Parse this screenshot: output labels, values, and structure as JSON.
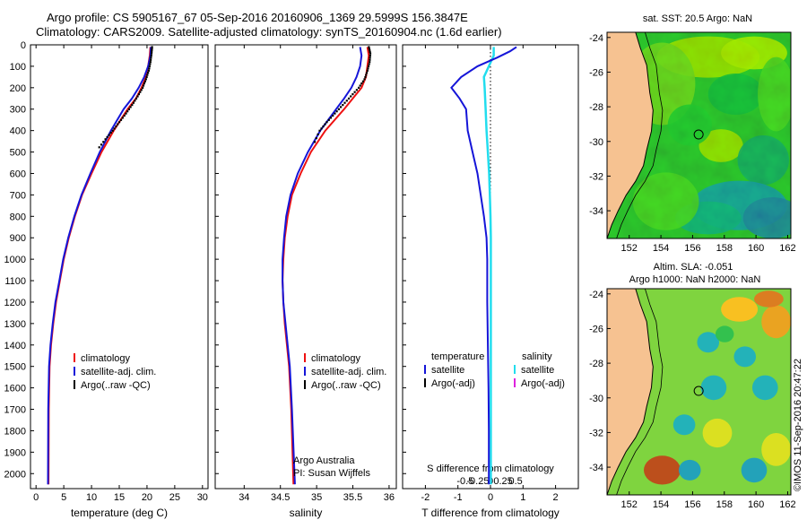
{
  "title_line1": "Argo profile: CS 5905167_67 05-Sep-2016 20160906_1369 29.5999S 156.3847E",
  "title_line2": "Climatology: CARS2009. Satellite-adjusted climatology: synTS_20160904.nc (1.6d earlier)",
  "colors": {
    "climatology": "#ee1111",
    "satellite": "#1515d8",
    "argo": "#000000",
    "sat_salinity": "#22ddee",
    "argo_salinity_adj": "#dd22dd",
    "land": "#f6c291",
    "sea_base": "#3aba3a"
  },
  "chart_data": [
    {
      "type": "line",
      "name": "temperature",
      "xlabel": "temperature (deg C)",
      "ylabel": "",
      "xlim": [
        -1,
        31
      ],
      "ylim": [
        2070,
        0
      ],
      "xticks": [
        0,
        5,
        10,
        15,
        20,
        25,
        30
      ],
      "yticks": [
        0,
        100,
        200,
        300,
        400,
        500,
        600,
        700,
        800,
        900,
        1000,
        1100,
        1200,
        1300,
        1400,
        1500,
        1600,
        1700,
        1800,
        1900,
        2000
      ],
      "legend": [
        "climatology",
        "satellite-adj. clim.",
        "Argo(..raw -QC)"
      ],
      "series": [
        {
          "name": "climatology",
          "x": [
            20.6,
            20.5,
            20.2,
            19.8,
            19.0,
            18.0,
            16.5,
            14.0,
            11.8,
            10.0,
            8.3,
            7.0,
            5.9,
            5.0,
            4.3,
            3.6,
            3.1,
            2.7,
            2.45,
            2.3,
            2.25
          ],
          "y": [
            10,
            50,
            100,
            150,
            200,
            250,
            300,
            400,
            500,
            600,
            700,
            800,
            900,
            1000,
            1100,
            1200,
            1300,
            1400,
            1500,
            1700,
            2050
          ]
        },
        {
          "name": "satellite-adj. clim.",
          "x": [
            20.7,
            20.6,
            20.2,
            19.5,
            18.5,
            17.3,
            15.8,
            13.5,
            11.5,
            9.8,
            8.2,
            6.9,
            5.8,
            4.9,
            4.2,
            3.5,
            3.0,
            2.6,
            2.35,
            2.2,
            2.15
          ],
          "y": [
            10,
            50,
            100,
            150,
            200,
            250,
            300,
            400,
            500,
            600,
            700,
            800,
            900,
            1000,
            1100,
            1200,
            1300,
            1400,
            1500,
            1700,
            2050
          ]
        },
        {
          "name": "Argo(..raw -QC)",
          "x": [
            20.9,
            20.8,
            20.6,
            20.3,
            19.8,
            19.2,
            18.3,
            17.3,
            16.2,
            15.0,
            13.8,
            12.5,
            11.0
          ],
          "y": [
            10,
            40,
            80,
            120,
            160,
            200,
            240,
            280,
            320,
            360,
            400,
            440,
            490
          ]
        }
      ]
    },
    {
      "type": "line",
      "name": "salinity",
      "xlabel": "salinity",
      "ylabel": "",
      "xlim": [
        33.6,
        36.1
      ],
      "ylim": [
        2070,
        0
      ],
      "xticks": [
        34,
        34.5,
        35,
        35.5,
        36
      ],
      "xtick_labels": [
        "34",
        "34.5",
        "35",
        "35.5",
        "36"
      ],
      "legend": [
        "climatology",
        "satellite-adj. clim.",
        "Argo(..raw -QC)"
      ],
      "annotation": [
        "Argo Australia",
        "PI: Susan Wijffels"
      ],
      "series": [
        {
          "name": "climatology",
          "x": [
            35.7,
            35.72,
            35.7,
            35.68,
            35.62,
            35.5,
            35.38,
            35.12,
            34.92,
            34.78,
            34.66,
            34.6,
            34.56,
            34.54,
            34.53,
            34.54,
            34.56,
            34.59,
            34.62,
            34.65,
            34.68
          ],
          "y": [
            10,
            50,
            100,
            150,
            200,
            250,
            300,
            400,
            500,
            600,
            700,
            800,
            900,
            1000,
            1100,
            1200,
            1300,
            1400,
            1500,
            1700,
            2050
          ]
        },
        {
          "name": "satellite-adj. clim.",
          "x": [
            35.6,
            35.62,
            35.6,
            35.55,
            35.48,
            35.38,
            35.27,
            35.05,
            34.88,
            34.74,
            34.64,
            34.58,
            34.55,
            34.53,
            34.53,
            34.54,
            34.57,
            34.6,
            34.63,
            34.66,
            34.7
          ],
          "y": [
            10,
            50,
            100,
            150,
            200,
            250,
            300,
            400,
            500,
            600,
            700,
            800,
            900,
            1000,
            1100,
            1200,
            1300,
            1400,
            1500,
            1700,
            2050
          ]
        },
        {
          "name": "Argo(..raw -QC)",
          "x": [
            35.72,
            35.74,
            35.73,
            35.7,
            35.66,
            35.58,
            35.47,
            35.36,
            35.25,
            35.14,
            35.04,
            34.95
          ],
          "y": [
            10,
            40,
            80,
            120,
            160,
            200,
            240,
            280,
            320,
            360,
            400,
            470
          ]
        }
      ]
    },
    {
      "type": "line",
      "name": "difference",
      "xlabel": "T difference from climatology",
      "xlabel_top": "S difference from climatology",
      "xlim": [
        -2.7,
        2.7
      ],
      "ylim": [
        2070,
        0
      ],
      "xticks": [
        -2,
        -1,
        0,
        1,
        2
      ],
      "xtick_labels": [
        "-2",
        "-1",
        "0",
        "1",
        "2"
      ],
      "top_ticks": [
        -0.5,
        -0.25,
        0,
        0.25,
        0.5
      ],
      "top_tick_labels": [
        "-0.5",
        "-0.25",
        "0",
        "0.25",
        "0.5"
      ],
      "legend_headings": [
        "temperature",
        "salinity"
      ],
      "legend": [
        "satellite",
        "Argo(-adj)",
        "satellite",
        "Argo(-adj)"
      ],
      "series": [
        {
          "name": "temperature satellite",
          "x": [
            0.8,
            0.6,
            0.2,
            -0.4,
            -0.9,
            -1.2,
            -0.95,
            -0.75,
            -0.7,
            -0.55,
            -0.4,
            -0.3,
            -0.2,
            -0.12,
            -0.1,
            -0.1,
            -0.08,
            -0.06,
            -0.05,
            -0.05
          ],
          "y": [
            10,
            30,
            60,
            100,
            150,
            200,
            250,
            300,
            400,
            500,
            600,
            700,
            800,
            900,
            1000,
            1200,
            1400,
            1600,
            1800,
            2050
          ]
        },
        {
          "name": "salinity satellite",
          "x": [
            0.1,
            0.1,
            -0.05,
            -0.2,
            -0.18,
            -0.15,
            -0.12,
            -0.08,
            -0.04,
            -0.02,
            0,
            0.01,
            0.01,
            0.01,
            0.01,
            0.01,
            0.01
          ],
          "y": [
            10,
            50,
            100,
            150,
            200,
            300,
            400,
            500,
            600,
            700,
            800,
            900,
            1000,
            1200,
            1400,
            1600,
            2050
          ]
        }
      ]
    },
    {
      "type": "heatmap",
      "name": "sst_map",
      "title": "sat. SST: 20.5 Argo: NaN",
      "xlim": [
        150.6,
        162.2
      ],
      "ylim": [
        -35.6,
        -23.7
      ],
      "xticks": [
        152,
        154,
        156,
        158,
        160,
        162
      ],
      "yticks": [
        -24,
        -26,
        -28,
        -30,
        -32,
        -34
      ],
      "marker": {
        "lon": 156.38,
        "lat": -29.6
      }
    },
    {
      "type": "heatmap",
      "name": "sla_map",
      "title": "Altim. SLA: -0.051",
      "subtitle": "Argo h1000: NaN h2000: NaN",
      "xlim": [
        150.6,
        162.2
      ],
      "ylim": [
        -35.6,
        -23.7
      ],
      "xticks": [
        152,
        154,
        156,
        158,
        160,
        162
      ],
      "yticks": [
        -24,
        -26,
        -28,
        -30,
        -32,
        -34
      ],
      "marker": {
        "lon": 156.38,
        "lat": -29.6
      }
    }
  ],
  "credit": "©IMOS 11-Sep-2016 20:47:22"
}
